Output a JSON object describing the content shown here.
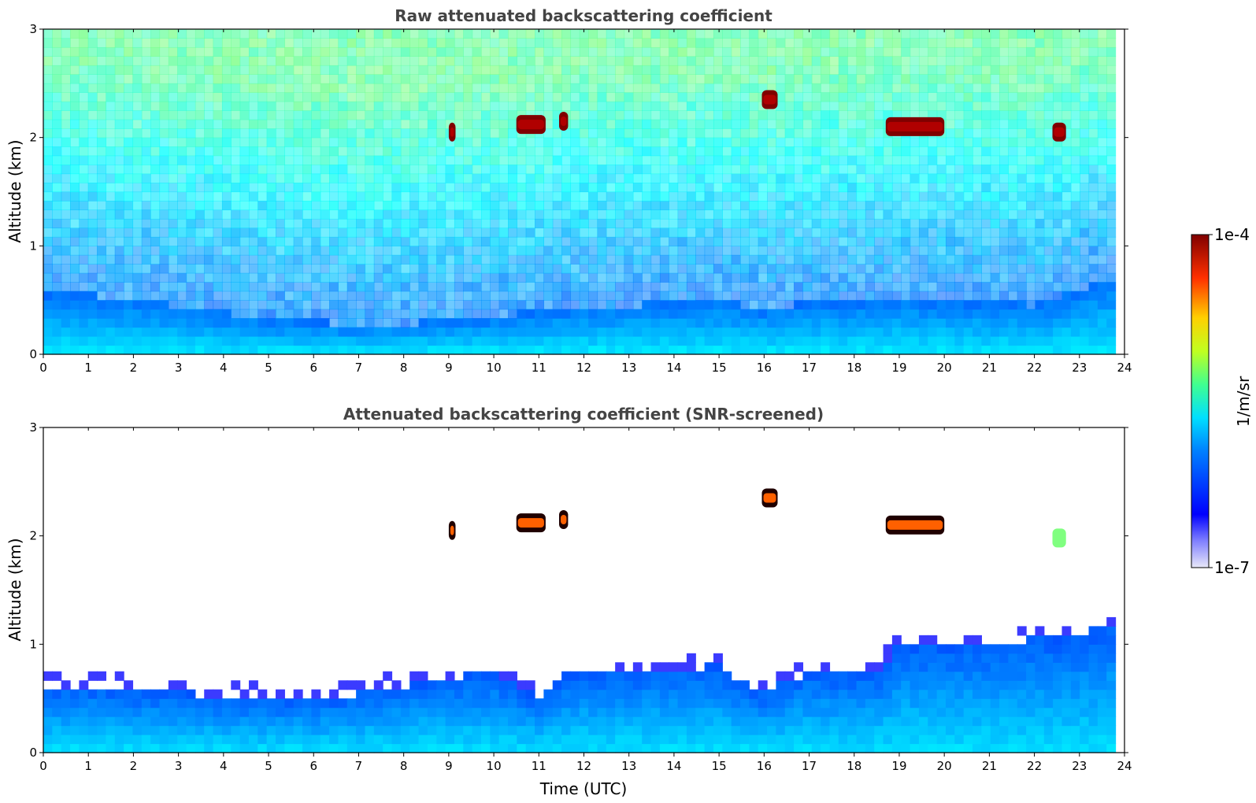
{
  "chart_data": [
    {
      "type": "heatmap",
      "title": "Raw attenuated backscattering coefficient",
      "xlabel": "",
      "ylabel": "Altitude (km)",
      "xlim": [
        0,
        24
      ],
      "ylim": [
        0,
        3
      ],
      "x_ticks": [
        0,
        1,
        2,
        3,
        4,
        5,
        6,
        7,
        8,
        9,
        10,
        11,
        12,
        13,
        14,
        15,
        16,
        17,
        18,
        19,
        20,
        21,
        22,
        23,
        24
      ],
      "y_ticks": [
        0,
        1,
        2,
        3
      ],
      "boundary_layer_top_km": [
        [
          0,
          0.55
        ],
        [
          1,
          0.55
        ],
        [
          2,
          0.5
        ],
        [
          3,
          0.45
        ],
        [
          4,
          0.38
        ],
        [
          5,
          0.33
        ],
        [
          6,
          0.3
        ],
        [
          7,
          0.27
        ],
        [
          8,
          0.28
        ],
        [
          9,
          0.32
        ],
        [
          10,
          0.35
        ],
        [
          11,
          0.4
        ],
        [
          12,
          0.45
        ],
        [
          13,
          0.45
        ],
        [
          14,
          0.48
        ],
        [
          15,
          0.5
        ],
        [
          16,
          0.42
        ],
        [
          17,
          0.48
        ],
        [
          18,
          0.5
        ],
        [
          19,
          0.52
        ],
        [
          20,
          0.5
        ],
        [
          21,
          0.48
        ],
        [
          22,
          0.45
        ],
        [
          23,
          0.6
        ],
        [
          23.8,
          0.7
        ]
      ],
      "cloud_features": [
        {
          "t_start": 9.0,
          "t_end": 9.15,
          "alt_km": 2.05,
          "level": 1.0
        },
        {
          "t_start": 10.5,
          "t_end": 11.15,
          "alt_km": 2.12,
          "level": 1.0
        },
        {
          "t_start": 11.45,
          "t_end": 11.65,
          "alt_km": 2.15,
          "level": 1.0
        },
        {
          "t_start": 15.95,
          "t_end": 16.3,
          "alt_km": 2.35,
          "level": 1.0
        },
        {
          "t_start": 18.7,
          "t_end": 20.0,
          "alt_km": 2.1,
          "level": 1.0
        },
        {
          "t_start": 22.4,
          "t_end": 22.7,
          "alt_km": 2.05,
          "level": 1.0
        }
      ]
    },
    {
      "type": "heatmap",
      "title": "Attenuated backscattering coefficient (SNR-screened)",
      "xlabel": "Time (UTC)",
      "ylabel": "Altitude (km)",
      "xlim": [
        0,
        24
      ],
      "ylim": [
        0,
        3
      ],
      "x_ticks": [
        0,
        1,
        2,
        3,
        4,
        5,
        6,
        7,
        8,
        9,
        10,
        11,
        12,
        13,
        14,
        15,
        16,
        17,
        18,
        19,
        20,
        21,
        22,
        23,
        24
      ],
      "y_ticks": [
        0,
        1,
        2,
        3
      ],
      "screened_layer_top_km": [
        [
          0,
          0.6
        ],
        [
          1,
          0.62
        ],
        [
          2,
          0.58
        ],
        [
          3,
          0.55
        ],
        [
          4,
          0.52
        ],
        [
          5,
          0.5
        ],
        [
          6,
          0.48
        ],
        [
          7,
          0.55
        ],
        [
          8,
          0.62
        ],
        [
          9,
          0.7
        ],
        [
          10,
          0.72
        ],
        [
          10.8,
          0.55
        ],
        [
          11,
          0.5
        ],
        [
          11.5,
          0.7
        ],
        [
          12,
          0.75
        ],
        [
          13,
          0.75
        ],
        [
          14,
          0.78
        ],
        [
          15,
          0.8
        ],
        [
          15.9,
          0.55
        ],
        [
          16.2,
          0.6
        ],
        [
          17,
          0.75
        ],
        [
          18,
          0.72
        ],
        [
          18.7,
          0.75
        ],
        [
          18.8,
          1.0
        ],
        [
          20,
          1.0
        ],
        [
          21,
          1.0
        ],
        [
          22,
          1.05
        ],
        [
          23,
          1.1
        ],
        [
          23.8,
          1.2
        ]
      ],
      "cloud_features": [
        {
          "t_start": 9.0,
          "t_end": 9.15,
          "alt_km": 2.05,
          "level": 1.0
        },
        {
          "t_start": 10.5,
          "t_end": 11.15,
          "alt_km": 2.12,
          "level": 1.0
        },
        {
          "t_start": 11.45,
          "t_end": 11.65,
          "alt_km": 2.15,
          "level": 1.0
        },
        {
          "t_start": 15.95,
          "t_end": 16.3,
          "alt_km": 2.35,
          "level": 1.0
        },
        {
          "t_start": 18.7,
          "t_end": 20.0,
          "alt_km": 2.1,
          "level": 1.0
        },
        {
          "t_start": 22.4,
          "t_end": 22.7,
          "alt_km": 1.98,
          "level": 0.5
        }
      ]
    }
  ],
  "colorbar": {
    "label": "1/m/sr",
    "max_label": "1e-4",
    "min_label": "1e-7",
    "colormap": "jet"
  }
}
